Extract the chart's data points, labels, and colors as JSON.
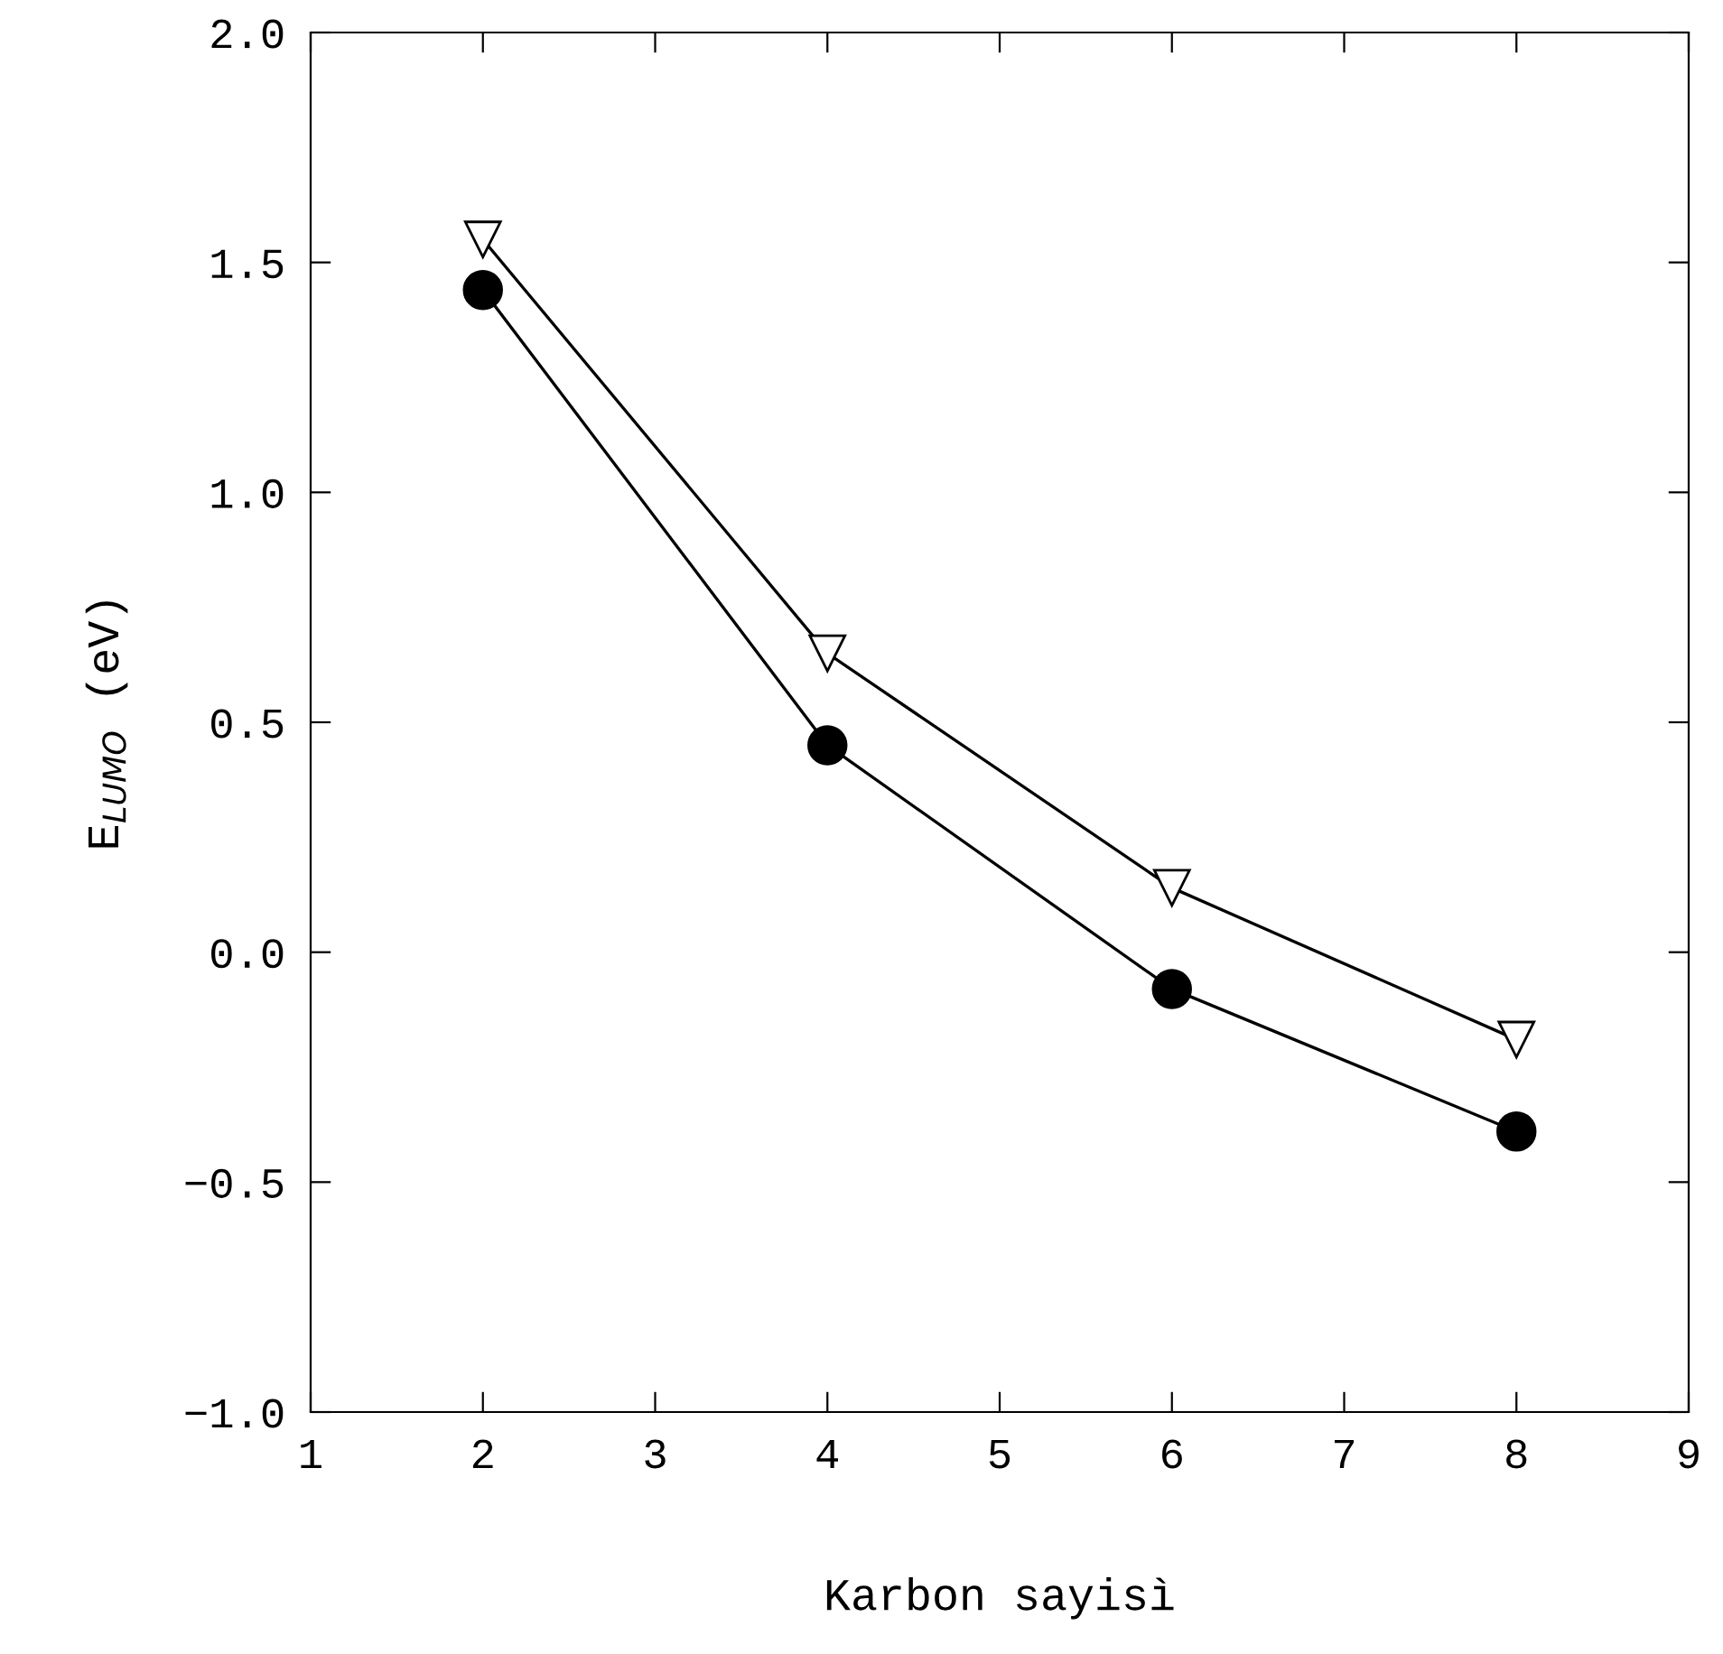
{
  "chart_data": {
    "type": "line",
    "xlabel": "Karbon sayisì",
    "ylabel": "E$_{LUMO}$ (eV)",
    "x": [
      2,
      4,
      6,
      8
    ],
    "series": [
      {
        "color": "#000000",
        "marker": "triangle",
        "values": [
          1.55,
          0.65,
          0.14,
          -0.19
        ]
      },
      {
        "color": "#000000",
        "marker": "circle",
        "values": [
          1.44,
          0.45,
          -0.08,
          -0.39
        ]
      }
    ],
    "xlim": [
      1,
      9
    ],
    "xticks": [
      1,
      2,
      3,
      4,
      5,
      6,
      7,
      8,
      9
    ],
    "ylim": [
      -1.0,
      2.0
    ],
    "yticks": [
      {
        "value": -1.0,
        "label": "−1.0"
      },
      {
        "value": -0.5,
        "label": "−0.5"
      },
      {
        "value": 0.0,
        "label": "0.0"
      },
      {
        "value": 0.5,
        "label": "0.5"
      },
      {
        "value": 1.0,
        "label": "1.0"
      },
      {
        "value": 1.5,
        "label": "1.5"
      },
      {
        "value": 2.0,
        "label": "2.0"
      }
    ],
    "grid": false,
    "legend": false,
    "line_style": "solid"
  }
}
